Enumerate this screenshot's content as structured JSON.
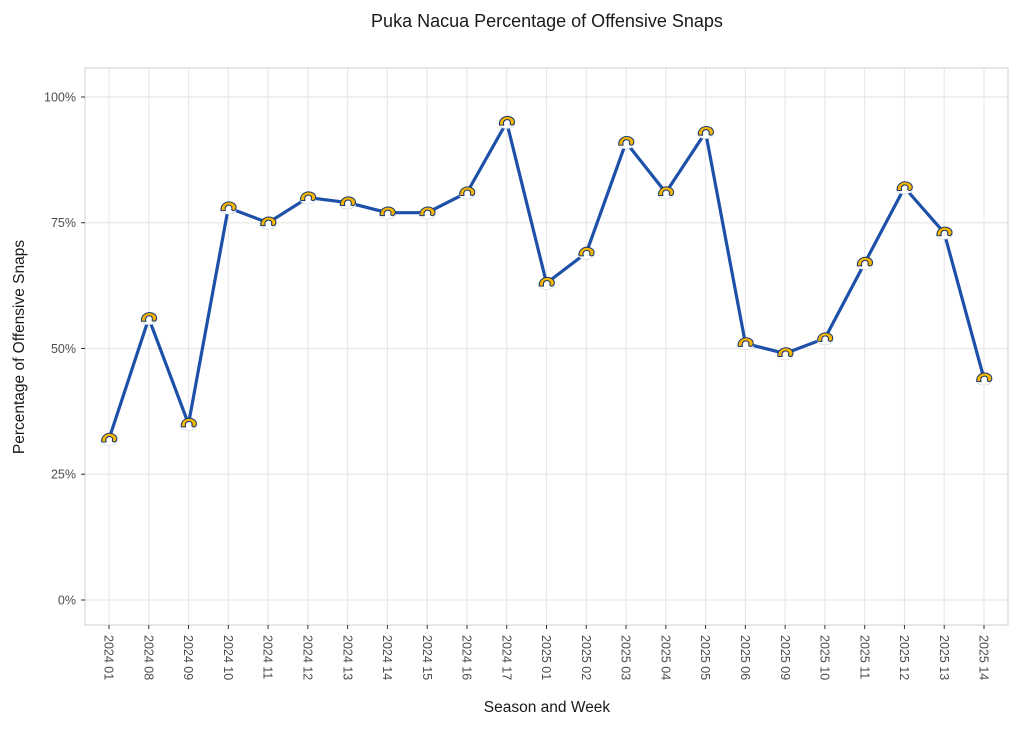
{
  "chart_data": {
    "type": "line",
    "title": "Puka Nacua Percentage of Offensive Snaps",
    "xlabel": "Season and Week",
    "ylabel": "Percentage of Offensive Snaps",
    "categories": [
      "2024 01",
      "2024 08",
      "2024 09",
      "2024 10",
      "2024 11",
      "2024 12",
      "2024 13",
      "2024 14",
      "2024 15",
      "2024 16",
      "2024 17",
      "2025 01",
      "2025 02",
      "2025 03",
      "2025 04",
      "2025 05",
      "2025 06",
      "2025 09",
      "2025 10",
      "2025 11",
      "2025 12",
      "2025 13",
      "2025 14"
    ],
    "values": [
      32,
      56,
      35,
      78,
      75,
      80,
      79,
      77,
      77,
      81,
      95,
      63,
      69,
      91,
      81,
      93,
      51,
      49,
      52,
      67,
      82,
      73,
      44
    ],
    "ylim": [
      0,
      100
    ],
    "yticks": [
      0,
      25,
      50,
      75,
      100
    ],
    "ytick_labels": [
      "0%",
      "25%",
      "50%",
      "75%",
      "100%"
    ],
    "grid": true,
    "legend": "none",
    "marker": "rams-logo",
    "colors": {
      "line": "#1D50A8",
      "marker_gold": "#F7B500",
      "marker_outline": "#14366F",
      "marker_white": "#FFFFFF",
      "marker_white_edge": "#C9D2E0",
      "point_dot": "#1A1A1A",
      "grid": "#E8E8E8",
      "panel_border": "#CFCFCF",
      "tick_mark": "#333333",
      "tick_text": "#4D4D4D",
      "title_text": "#1A1A1A"
    }
  }
}
